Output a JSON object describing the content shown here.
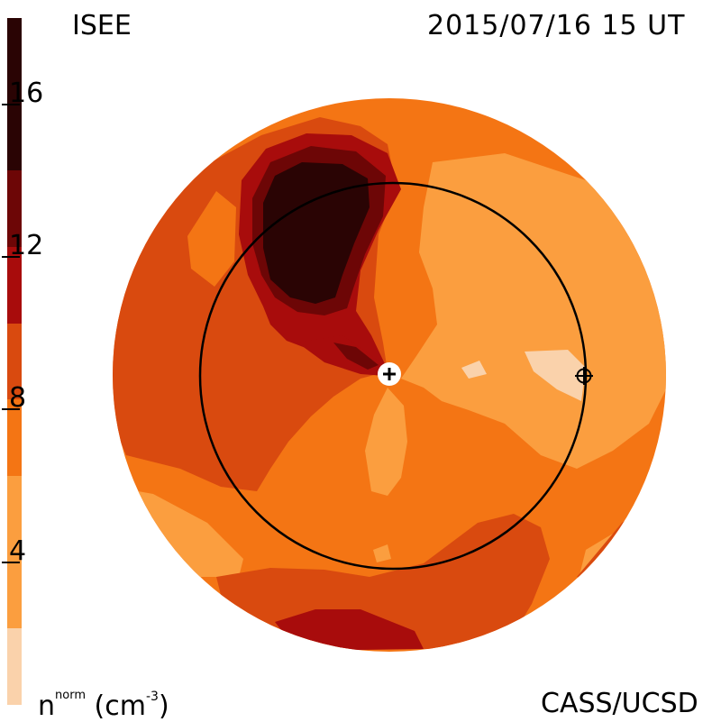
{
  "header": {
    "source": "ISEE",
    "timestamp": "2015/07/16  15 UT"
  },
  "footer": {
    "quantity_base": "n",
    "quantity_sup": "norm",
    "quantity_unit_open": " (cm",
    "quantity_unit_exp": "-3",
    "quantity_unit_close": ")",
    "credit": "CASS/UCSD"
  },
  "colorbar": {
    "ticks": [
      "16",
      "12",
      "8",
      "4"
    ],
    "tick_values": [
      16,
      12,
      8,
      4
    ],
    "range": [
      0,
      18
    ],
    "levels": [
      {
        "from": 0,
        "to": 2,
        "color": "#fad2ab"
      },
      {
        "from": 2,
        "to": 6,
        "color": "#fb9e3f"
      },
      {
        "from": 6,
        "to": 8,
        "color": "#f47514"
      },
      {
        "from": 8,
        "to": 10,
        "color": "#d94a0f"
      },
      {
        "from": 10,
        "to": 12,
        "color": "#a80c0c"
      },
      {
        "from": 12,
        "to": 14,
        "color": "#6d0606"
      },
      {
        "from": 14,
        "to": 18,
        "color": "#2a0404"
      }
    ]
  },
  "map": {
    "background_color": "#f47514",
    "ring_color": "#000000",
    "sun_marker": "+",
    "earth_marker": "circle-plus"
  }
}
